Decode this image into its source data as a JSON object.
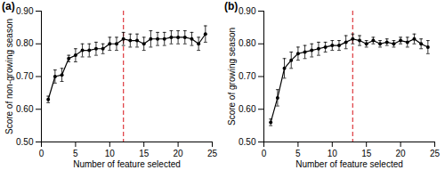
{
  "chart_data": [
    {
      "type": "line",
      "title": "(a)",
      "x_label": "Number of feature selected",
      "y_label": "Score of non-growing season",
      "x": [
        1,
        2,
        3,
        4,
        5,
        6,
        7,
        8,
        9,
        10,
        11,
        12,
        13,
        14,
        15,
        16,
        17,
        18,
        19,
        20,
        21,
        22,
        23,
        24
      ],
      "series": [
        {
          "color": "#000000",
          "marker": "circle",
          "values": [
            0.63,
            0.7,
            0.705,
            0.755,
            0.765,
            0.78,
            0.78,
            0.785,
            0.785,
            0.8,
            0.8,
            0.815,
            0.81,
            0.81,
            0.8,
            0.815,
            0.815,
            0.815,
            0.82,
            0.82,
            0.82,
            0.815,
            0.8,
            0.83
          ],
          "errors": [
            0.01,
            0.02,
            0.02,
            0.01,
            0.02,
            0.02,
            0.02,
            0.02,
            0.015,
            0.02,
            0.02,
            0.02,
            0.02,
            0.02,
            0.02,
            0.025,
            0.02,
            0.02,
            0.02,
            0.02,
            0.02,
            0.02,
            0.02,
            0.025
          ]
        }
      ],
      "reference_lines": [
        {
          "x": 12,
          "color": "#e0474c",
          "line_style": "dashed"
        }
      ],
      "xlim": [
        0,
        25
      ],
      "xticks": [
        0,
        5,
        10,
        15,
        20,
        25
      ],
      "ylim": [
        0.5,
        0.9
      ],
      "yticks": [
        0.5,
        0.6,
        0.7,
        0.8,
        0.9
      ]
    },
    {
      "type": "line",
      "title": "(b)",
      "x_label": "Number of feature selected",
      "y_label": "Score of growing season",
      "x": [
        1,
        2,
        3,
        4,
        5,
        6,
        7,
        8,
        9,
        10,
        11,
        12,
        13,
        14,
        15,
        16,
        17,
        18,
        19,
        20,
        21,
        22,
        23,
        24
      ],
      "series": [
        {
          "color": "#000000",
          "marker": "circle",
          "values": [
            0.56,
            0.635,
            0.725,
            0.75,
            0.77,
            0.775,
            0.78,
            0.785,
            0.79,
            0.795,
            0.795,
            0.805,
            0.815,
            0.81,
            0.8,
            0.81,
            0.8,
            0.805,
            0.8,
            0.81,
            0.805,
            0.815,
            0.8,
            0.79
          ],
          "errors": [
            0.01,
            0.025,
            0.03,
            0.025,
            0.02,
            0.02,
            0.02,
            0.02,
            0.015,
            0.015,
            0.015,
            0.02,
            0.015,
            0.015,
            0.01,
            0.01,
            0.01,
            0.01,
            0.01,
            0.01,
            0.015,
            0.015,
            0.015,
            0.02
          ]
        }
      ],
      "reference_lines": [
        {
          "x": 13,
          "color": "#e0474c",
          "line_style": "dashed"
        }
      ],
      "xlim": [
        0,
        25
      ],
      "xticks": [
        0,
        5,
        10,
        15,
        20,
        25
      ],
      "ylim": [
        0.5,
        0.9
      ],
      "yticks": [
        0.5,
        0.6,
        0.7,
        0.8,
        0.9
      ]
    }
  ]
}
